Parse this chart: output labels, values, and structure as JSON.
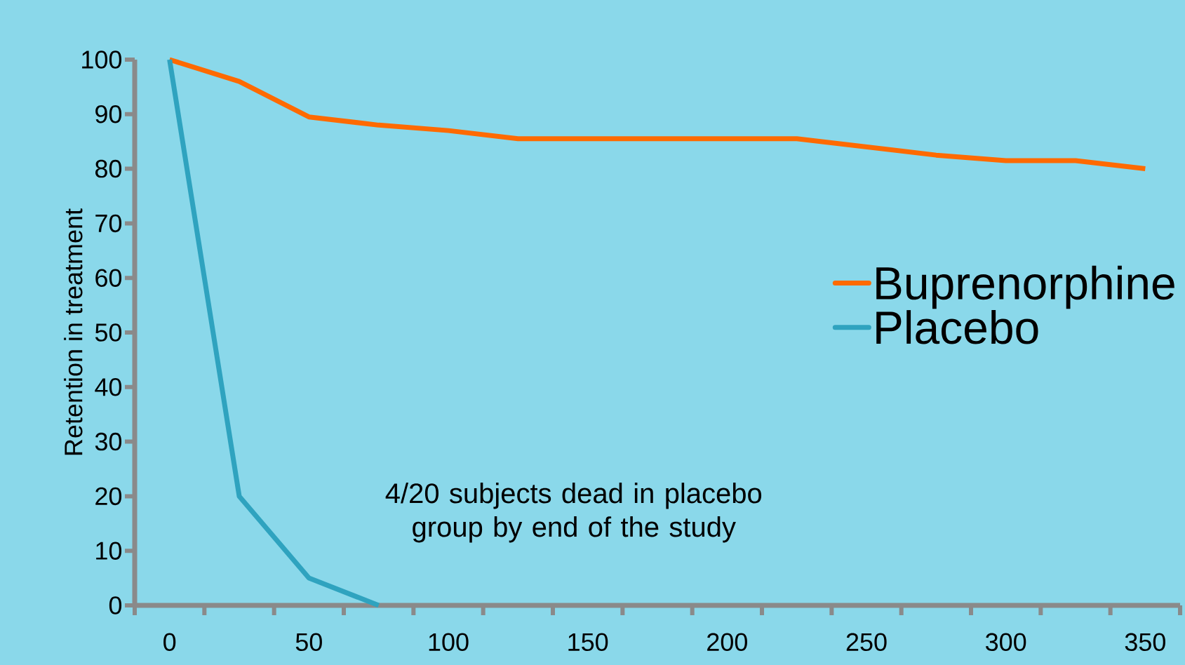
{
  "chart_data": {
    "type": "line",
    "ylabel": "Retention in treatment",
    "categories": [
      "0",
      null,
      "50",
      null,
      "100",
      null,
      "150",
      null,
      "200",
      null,
      "250",
      null,
      "300",
      null,
      "350"
    ],
    "series": [
      {
        "name": "Buprenorphine",
        "color": "#ff6a00",
        "values": [
          100,
          96,
          89.5,
          88,
          87,
          85.5,
          85.5,
          85.5,
          85.5,
          85.5,
          84,
          82.5,
          81.5,
          81.5,
          80
        ]
      },
      {
        "name": "Placebo",
        "color": "#2fa3bf",
        "values": [
          100,
          20,
          5,
          0,
          null,
          null,
          null,
          null,
          null,
          null,
          null,
          null,
          null,
          null,
          null
        ]
      }
    ],
    "ylim": [
      0,
      100
    ],
    "yticks": [
      0,
      10,
      20,
      30,
      40,
      50,
      60,
      70,
      80,
      90,
      100
    ],
    "legend": "right",
    "marker": "none",
    "line_style": "solid",
    "annotations": [
      "4/20 subjects dead in placebo group by end of the study"
    ]
  }
}
